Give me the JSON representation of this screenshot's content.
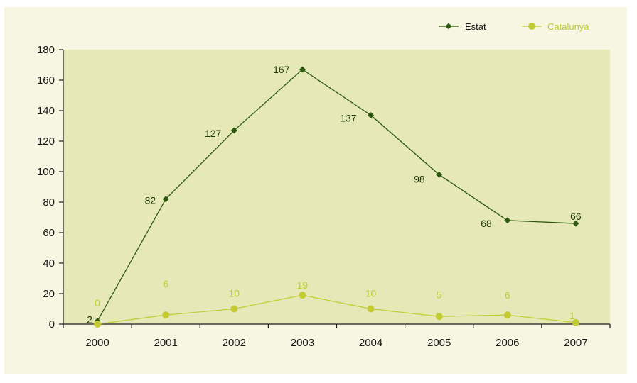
{
  "chart_data": {
    "type": "line",
    "categories": [
      "2000",
      "2001",
      "2002",
      "2003",
      "2004",
      "2005",
      "2006",
      "2007"
    ],
    "ylim": [
      0,
      180
    ],
    "yticks": [
      0,
      20,
      40,
      60,
      80,
      100,
      120,
      140,
      160,
      180
    ],
    "grid": false,
    "legend_position": "top-right",
    "series": [
      {
        "name": "Estat",
        "values": [
          2,
          82,
          127,
          167,
          137,
          98,
          68,
          66
        ],
        "labels": [
          "2",
          "82",
          "127",
          "167",
          "137",
          "98",
          "68",
          "66"
        ],
        "color": "#2d5a0e",
        "marker": "diamond"
      },
      {
        "name": "Catalunya",
        "values": [
          0,
          6,
          10,
          19,
          10,
          5,
          6,
          1
        ],
        "labels": [
          "0",
          "6",
          "10",
          "19",
          "10",
          "5",
          "6",
          "1"
        ],
        "color": "#c2cc32",
        "marker": "circle"
      }
    ]
  },
  "colors": {
    "frame_background": "#f6f6e2",
    "plot_background": "#e6e8b8",
    "axis": "#1a1a1a"
  }
}
